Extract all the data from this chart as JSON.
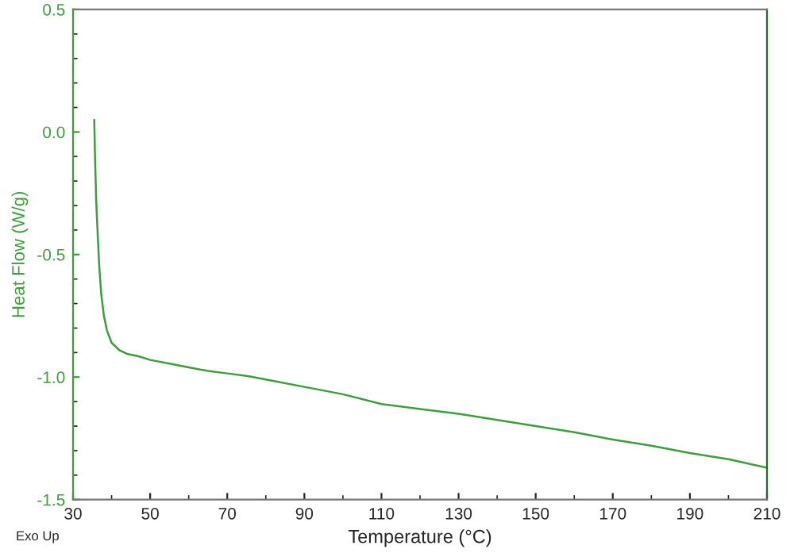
{
  "chart_data": {
    "type": "line",
    "xlabel": "Temperature (°C)",
    "ylabel": "Heat Flow (W/g)",
    "annotations": [
      "Exo Up"
    ],
    "xlim": [
      30,
      210
    ],
    "xticks": [
      30,
      50,
      70,
      90,
      110,
      130,
      150,
      170,
      190,
      210
    ],
    "ylim": [
      -1.5,
      0.5
    ],
    "yticks": [
      {
        "value": -1.5,
        "label": "-1.5"
      },
      {
        "value": -1.0,
        "label": "-1.0"
      },
      {
        "value": -0.5,
        "label": "-0.5"
      },
      {
        "value": 0.0,
        "label": "0.0"
      },
      {
        "value": 0.5,
        "label": "0.5"
      }
    ],
    "grid": false,
    "marker": "none",
    "line_style": "solid",
    "series": [
      {
        "color": "#3c9e3c",
        "x": [
          35.5,
          35.7,
          36.0,
          36.4,
          36.8,
          37.3,
          38.0,
          38.8,
          40.0,
          42.0,
          44.0,
          47.0,
          50.0,
          55.0,
          60.0,
          65.0,
          70.0,
          75.0,
          80.0,
          90.0,
          100.0,
          110.0,
          120.0,
          130.0,
          140.0,
          150.0,
          160.0,
          170.0,
          180.0,
          190.0,
          200.0,
          210.0
        ],
        "values": [
          0.05,
          -0.1,
          -0.28,
          -0.42,
          -0.55,
          -0.66,
          -0.75,
          -0.81,
          -0.86,
          -0.89,
          -0.905,
          -0.915,
          -0.93,
          -0.945,
          -0.96,
          -0.975,
          -0.985,
          -0.995,
          -1.01,
          -1.04,
          -1.07,
          -1.11,
          -1.13,
          -1.15,
          -1.175,
          -1.2,
          -1.225,
          -1.255,
          -1.28,
          -1.31,
          -1.335,
          -1.37
        ]
      }
    ]
  }
}
